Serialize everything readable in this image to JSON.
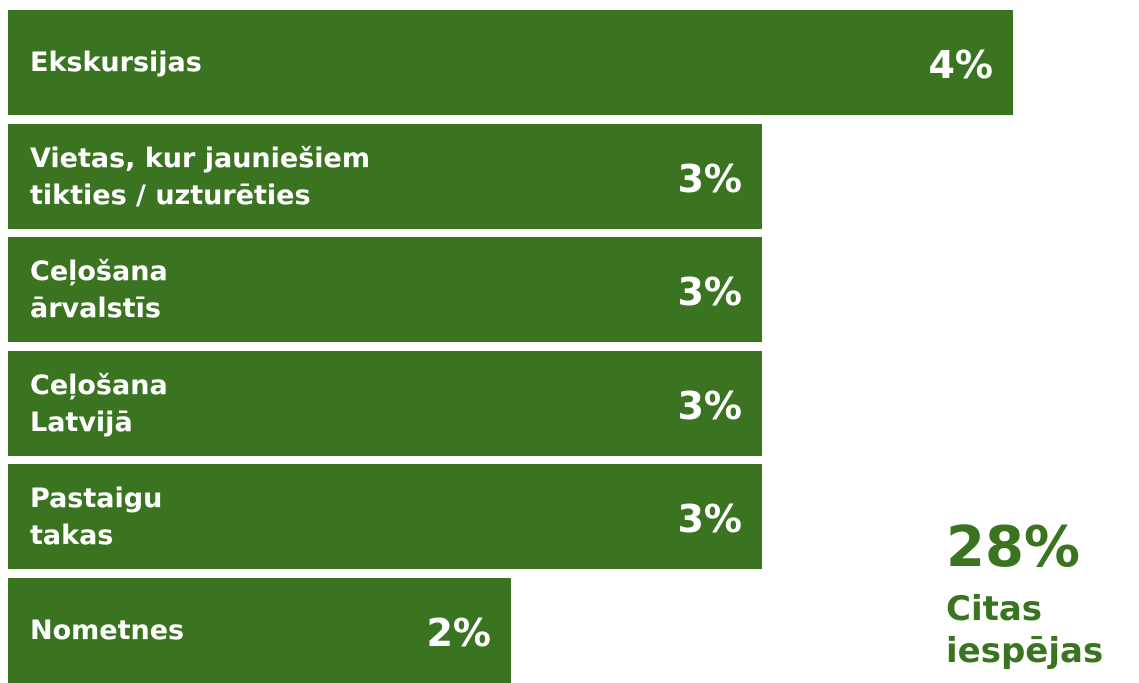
{
  "chart_data": {
    "type": "bar",
    "orientation": "horizontal",
    "categories": [
      "Ekskursijas",
      "Vietas, kur jauniešiem\ntikties / uzturēties",
      "Ceļošana\nārvalstīs",
      "Ceļošana\nLatvijā",
      "Pastaigu\ntakas",
      "Nometnes"
    ],
    "values": [
      4,
      3,
      3,
      3,
      3,
      2
    ],
    "value_labels": [
      "4%",
      "3%",
      "3%",
      "3%",
      "3%",
      "2%"
    ],
    "unit": "%",
    "xlim": [
      0,
      4
    ],
    "grid": false,
    "legend": "none",
    "bar_color": "#3a7420"
  },
  "other": {
    "value": "28%",
    "label": "Citas\niespējas"
  }
}
